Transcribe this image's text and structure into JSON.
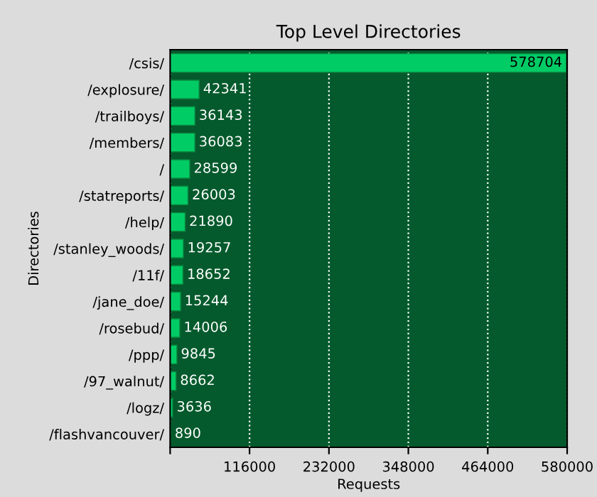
{
  "chart_data": {
    "type": "bar",
    "orientation": "horizontal",
    "title": "Top Level Directories",
    "xlabel": "Requests",
    "ylabel": "Directories",
    "categories": [
      "/csis/",
      "/explosure/",
      "/trailboys/",
      "/members/",
      "/",
      "/statreports/",
      "/help/",
      "/stanley_woods/",
      "/11f/",
      "/jane_doe/",
      "/rosebud/",
      "/ppp/",
      "/97_walnut/",
      "/logz/",
      "/flashvancouver/"
    ],
    "values": [
      578704,
      42341,
      36143,
      36083,
      28599,
      26003,
      21890,
      19257,
      18652,
      15244,
      14006,
      9845,
      8662,
      3636,
      890
    ],
    "color": "#00cc66",
    "xlim": [
      0,
      580000
    ],
    "xticks": [
      {
        "value": 0,
        "label": null
      },
      116000,
      232000,
      348000,
      464000,
      580000
    ],
    "grid": "x",
    "data_labels": true
  }
}
